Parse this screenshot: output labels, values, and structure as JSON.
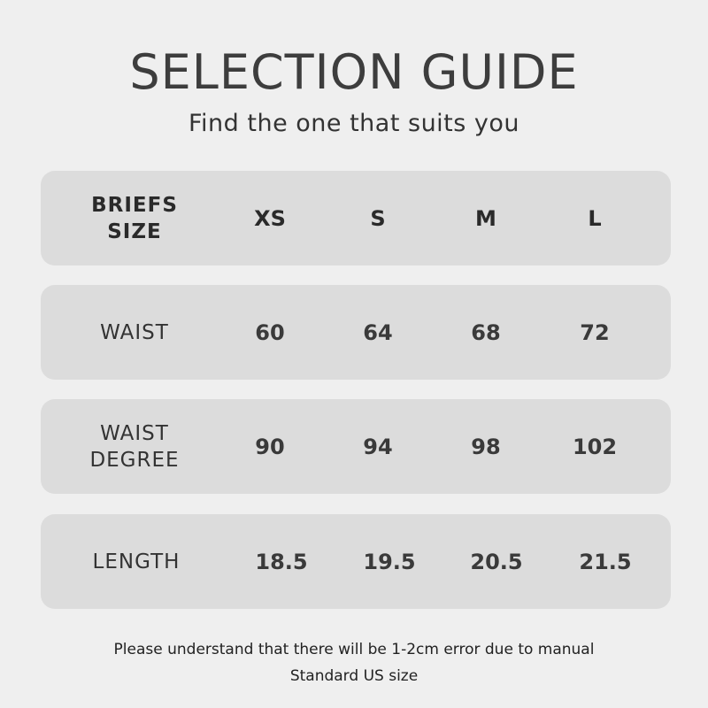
{
  "title": "SELECTION GUIDE",
  "subtitle": "Find the one that suits you",
  "table": {
    "header": {
      "label": "BRIEFS SIZE",
      "sizes": [
        "XS",
        "S",
        "M",
        "L"
      ]
    },
    "rows": [
      {
        "label": "WAIST",
        "values": [
          "60",
          "64",
          "68",
          "72"
        ]
      },
      {
        "label": "WAIST DEGREE",
        "values": [
          "90",
          "94",
          "98",
          "102"
        ]
      },
      {
        "label": "LENGTH",
        "values": [
          "18.5",
          "19.5",
          "20.5",
          "21.5"
        ]
      }
    ]
  },
  "notes": [
    "Please understand that there will be 1-2cm error due to manual",
    "Standard US size"
  ]
}
